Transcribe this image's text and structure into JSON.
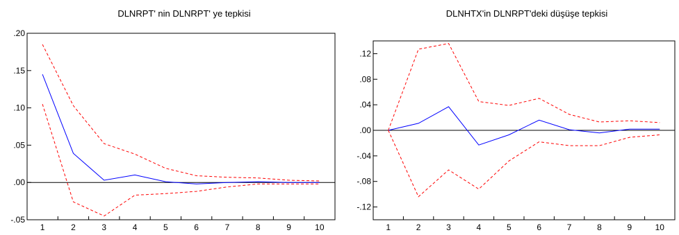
{
  "chart_data": [
    {
      "type": "line",
      "title": "DLNRPT' nin DLNRPT' ye tepkisi",
      "xlabel": "",
      "ylabel": "",
      "x": [
        1,
        2,
        3,
        4,
        5,
        6,
        7,
        8,
        9,
        10
      ],
      "ylim": [
        -0.05,
        0.2
      ],
      "yticks": [
        ".20",
        ".15",
        ".10",
        ".05",
        ".00",
        "-.05"
      ],
      "ytick_values": [
        0.2,
        0.15,
        0.1,
        0.05,
        0.0,
        -0.05
      ],
      "zero_line": true,
      "grid": false,
      "series": [
        {
          "color": "#0000ff",
          "style": "solid",
          "values": [
            0.145,
            0.039,
            0.003,
            0.01,
            0.001,
            -0.002,
            0.0,
            0.001,
            0.0,
            0.0
          ]
        },
        {
          "color": "#ff0000",
          "style": "dashed",
          "values": [
            0.185,
            0.103,
            0.052,
            0.038,
            0.019,
            0.009,
            0.007,
            0.006,
            0.003,
            0.002
          ]
        },
        {
          "color": "#ff0000",
          "style": "dashed",
          "values": [
            0.105,
            -0.026,
            -0.045,
            -0.017,
            -0.015,
            -0.012,
            -0.006,
            -0.002,
            -0.002,
            -0.002
          ]
        }
      ]
    },
    {
      "type": "line",
      "title": "DLNHTX'in DLNRPT'deki düşüşe tepkisi",
      "xlabel": "",
      "ylabel": "",
      "x": [
        1,
        2,
        3,
        4,
        5,
        6,
        7,
        8,
        9,
        10
      ],
      "ylim": [
        -0.14,
        0.14
      ],
      "yticks": [
        ".12",
        ".08",
        ".04",
        ".00",
        "-.04",
        "-.08",
        "-.12"
      ],
      "ytick_values": [
        0.12,
        0.08,
        0.04,
        0.0,
        -0.04,
        -0.08,
        -0.12
      ],
      "zero_line": true,
      "grid": false,
      "series": [
        {
          "color": "#0000ff",
          "style": "solid",
          "values": [
            0.0,
            0.011,
            0.037,
            -0.023,
            -0.007,
            0.016,
            0.001,
            -0.004,
            0.002,
            0.002
          ]
        },
        {
          "color": "#ff0000",
          "style": "dashed",
          "values": [
            0.0,
            0.127,
            0.136,
            0.045,
            0.039,
            0.05,
            0.025,
            0.013,
            0.015,
            0.012
          ]
        },
        {
          "color": "#ff0000",
          "style": "dashed",
          "values": [
            0.0,
            -0.104,
            -0.062,
            -0.092,
            -0.048,
            -0.018,
            -0.024,
            -0.024,
            -0.011,
            -0.007
          ]
        }
      ]
    }
  ]
}
